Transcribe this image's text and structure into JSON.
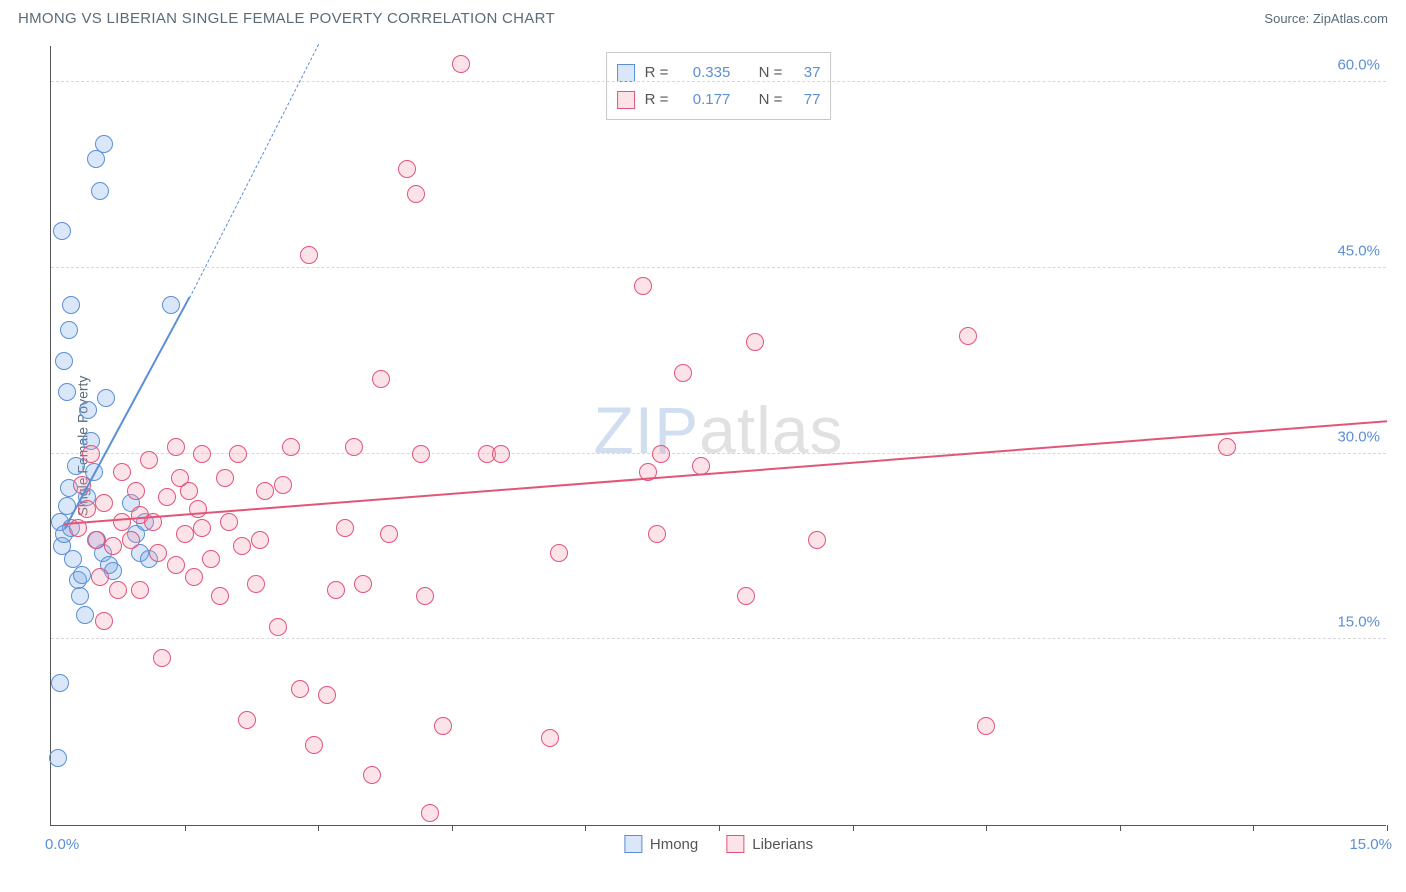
{
  "header": {
    "title": "HMONG VS LIBERIAN SINGLE FEMALE POVERTY CORRELATION CHART",
    "source_label": "Source:",
    "source_name": "ZipAtlas.com"
  },
  "watermark": {
    "accent": "ZIP",
    "rest": "atlas"
  },
  "chart": {
    "type": "scatter",
    "y_axis_label": "Single Female Poverty",
    "xlim": [
      0,
      15
    ],
    "ylim": [
      0,
      63
    ],
    "y_ticks": [
      15,
      30,
      45,
      60
    ],
    "y_tick_labels": [
      "15.0%",
      "30.0%",
      "45.0%",
      "60.0%"
    ],
    "x_tick_positions": [
      1.5,
      3.0,
      4.5,
      6.0,
      7.5,
      9.0,
      10.5,
      12.0,
      13.5,
      15.0
    ],
    "x_min_label": "0.0%",
    "x_max_label": "15.0%",
    "gridline_color": "#d8d8d8",
    "axis_color": "#555555",
    "tick_label_color": "#5b8fd6",
    "background_color": "#ffffff",
    "point_radius": 9,
    "series": [
      {
        "name": "Hmong",
        "stroke": "#5b8fd6",
        "fill": "rgba(120,170,230,0.28)",
        "R": "0.335",
        "N": "37",
        "trend": {
          "x1": 0.15,
          "y1": 23.8,
          "x2": 1.55,
          "y2": 42.5,
          "dash_x2": 3.0,
          "dash_y2": 63.0,
          "width": 2.5
        },
        "points": [
          [
            0.1,
            24.5
          ],
          [
            0.12,
            22.5
          ],
          [
            0.15,
            23.5
          ],
          [
            0.18,
            25.8
          ],
          [
            0.2,
            27.2
          ],
          [
            0.22,
            24.0
          ],
          [
            0.25,
            21.5
          ],
          [
            0.28,
            29.0
          ],
          [
            0.3,
            19.8
          ],
          [
            0.32,
            18.5
          ],
          [
            0.35,
            20.2
          ],
          [
            0.38,
            17.0
          ],
          [
            0.4,
            26.5
          ],
          [
            0.15,
            37.5
          ],
          [
            0.18,
            35.0
          ],
          [
            0.2,
            40.0
          ],
          [
            0.22,
            42.0
          ],
          [
            0.12,
            48.0
          ],
          [
            0.1,
            11.5
          ],
          [
            0.08,
            5.4
          ],
          [
            0.5,
            53.8
          ],
          [
            0.55,
            51.2
          ],
          [
            0.6,
            55.0
          ],
          [
            0.42,
            33.5
          ],
          [
            0.45,
            31.0
          ],
          [
            0.48,
            28.5
          ],
          [
            0.52,
            23.0
          ],
          [
            0.58,
            22.0
          ],
          [
            0.65,
            21.0
          ],
          [
            0.7,
            20.5
          ],
          [
            1.35,
            42.0
          ],
          [
            0.9,
            26.0
          ],
          [
            0.95,
            23.5
          ],
          [
            1.0,
            22.0
          ],
          [
            1.05,
            24.5
          ],
          [
            1.1,
            21.5
          ],
          [
            0.62,
            34.5
          ]
        ]
      },
      {
        "name": "Liberians",
        "stroke": "#e25578",
        "fill": "rgba(245,150,175,0.28)",
        "R": "0.177",
        "N": "77",
        "trend": {
          "x1": 0.15,
          "y1": 24.2,
          "x2": 15.0,
          "y2": 32.5,
          "width": 2.2
        },
        "points": [
          [
            0.3,
            24.0
          ],
          [
            0.4,
            25.5
          ],
          [
            0.5,
            23.0
          ],
          [
            0.6,
            26.0
          ],
          [
            0.7,
            22.5
          ],
          [
            0.8,
            24.5
          ],
          [
            0.9,
            23.0
          ],
          [
            1.0,
            25.0
          ],
          [
            1.1,
            29.5
          ],
          [
            1.2,
            22.0
          ],
          [
            1.3,
            26.5
          ],
          [
            1.4,
            21.0
          ],
          [
            1.5,
            23.5
          ],
          [
            1.6,
            20.0
          ],
          [
            1.7,
            24.0
          ],
          [
            0.45,
            30.0
          ],
          [
            0.6,
            16.5
          ],
          [
            0.8,
            28.5
          ],
          [
            1.0,
            19.0
          ],
          [
            1.25,
            13.5
          ],
          [
            1.4,
            30.5
          ],
          [
            1.55,
            27.0
          ],
          [
            1.7,
            30.0
          ],
          [
            1.8,
            21.5
          ],
          [
            1.9,
            18.5
          ],
          [
            2.0,
            24.5
          ],
          [
            2.1,
            30.0
          ],
          [
            2.15,
            22.5
          ],
          [
            2.2,
            8.5
          ],
          [
            2.3,
            19.5
          ],
          [
            2.4,
            27.0
          ],
          [
            2.55,
            16.0
          ],
          [
            2.7,
            30.5
          ],
          [
            2.8,
            11.0
          ],
          [
            2.9,
            46.0
          ],
          [
            2.95,
            6.5
          ],
          [
            3.1,
            10.5
          ],
          [
            3.2,
            19.0
          ],
          [
            3.3,
            24.0
          ],
          [
            3.4,
            30.5
          ],
          [
            3.6,
            4.0
          ],
          [
            3.7,
            36.0
          ],
          [
            3.8,
            23.5
          ],
          [
            4.0,
            53.0
          ],
          [
            4.1,
            51.0
          ],
          [
            4.15,
            30.0
          ],
          [
            4.2,
            18.5
          ],
          [
            4.25,
            1.0
          ],
          [
            4.4,
            8.0
          ],
          [
            4.6,
            61.5
          ],
          [
            4.9,
            30.0
          ],
          [
            5.05,
            30.0
          ],
          [
            5.6,
            7.0
          ],
          [
            5.7,
            22.0
          ],
          [
            6.65,
            43.5
          ],
          [
            6.7,
            28.5
          ],
          [
            6.8,
            23.5
          ],
          [
            6.85,
            30.0
          ],
          [
            7.1,
            36.5
          ],
          [
            7.3,
            29.0
          ],
          [
            7.8,
            18.5
          ],
          [
            7.9,
            39.0
          ],
          [
            8.6,
            23.0
          ],
          [
            10.3,
            39.5
          ],
          [
            10.5,
            8.0
          ],
          [
            13.2,
            30.5
          ],
          [
            0.35,
            27.5
          ],
          [
            0.55,
            20.0
          ],
          [
            0.75,
            19.0
          ],
          [
            0.95,
            27.0
          ],
          [
            1.15,
            24.5
          ],
          [
            1.45,
            28.0
          ],
          [
            1.65,
            25.5
          ],
          [
            1.95,
            28.0
          ],
          [
            2.35,
            23.0
          ],
          [
            2.6,
            27.5
          ],
          [
            3.5,
            19.5
          ]
        ]
      }
    ],
    "stats_box": {
      "r_label": "R =",
      "n_label": "N ="
    },
    "bottom_legend": [
      "Hmong",
      "Liberians"
    ]
  }
}
